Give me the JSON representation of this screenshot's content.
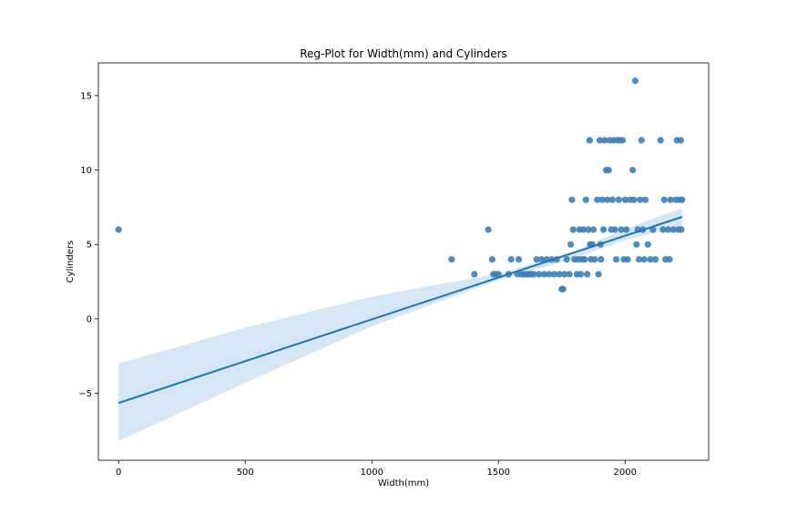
{
  "chart_data": {
    "type": "scatter",
    "title": "Reg-Plot for Width(mm) and Cylinders",
    "xlabel": "Width(mm)",
    "ylabel": "Cylinders",
    "xlim": [
      -80,
      2330
    ],
    "ylim": [
      -9.5,
      17.2
    ],
    "xticks": [
      0,
      500,
      1000,
      1500,
      2000
    ],
    "yticks": [
      -5,
      0,
      5,
      10,
      15
    ],
    "grid": false,
    "colors": {
      "points": "#3f7fb5",
      "line": "#1f77b4",
      "band": "#c6dbef"
    },
    "points": [
      [
        0,
        6
      ],
      [
        1315,
        4
      ],
      [
        1405,
        3
      ],
      [
        1460,
        6
      ],
      [
        1475,
        4
      ],
      [
        1480,
        3
      ],
      [
        1490,
        3
      ],
      [
        1500,
        3
      ],
      [
        1540,
        3
      ],
      [
        1550,
        4
      ],
      [
        1575,
        3
      ],
      [
        1580,
        4
      ],
      [
        1590,
        3
      ],
      [
        1600,
        3
      ],
      [
        1610,
        3
      ],
      [
        1620,
        3
      ],
      [
        1630,
        3
      ],
      [
        1640,
        3
      ],
      [
        1650,
        4
      ],
      [
        1660,
        3
      ],
      [
        1670,
        4
      ],
      [
        1680,
        3
      ],
      [
        1690,
        4
      ],
      [
        1700,
        3
      ],
      [
        1710,
        4
      ],
      [
        1720,
        3
      ],
      [
        1730,
        4
      ],
      [
        1740,
        3
      ],
      [
        1750,
        2
      ],
      [
        1755,
        2
      ],
      [
        1760,
        3
      ],
      [
        1770,
        4
      ],
      [
        1780,
        3
      ],
      [
        1785,
        5
      ],
      [
        1790,
        8
      ],
      [
        1795,
        6
      ],
      [
        1800,
        4
      ],
      [
        1810,
        3
      ],
      [
        1815,
        4
      ],
      [
        1820,
        6
      ],
      [
        1825,
        3
      ],
      [
        1830,
        4
      ],
      [
        1835,
        6
      ],
      [
        1840,
        4
      ],
      [
        1845,
        8
      ],
      [
        1850,
        3
      ],
      [
        1855,
        6
      ],
      [
        1860,
        12
      ],
      [
        1862,
        5
      ],
      [
        1865,
        4
      ],
      [
        1870,
        5
      ],
      [
        1875,
        6
      ],
      [
        1880,
        4
      ],
      [
        1890,
        8
      ],
      [
        1895,
        3
      ],
      [
        1900,
        12
      ],
      [
        1903,
        5
      ],
      [
        1905,
        4
      ],
      [
        1910,
        8
      ],
      [
        1915,
        6
      ],
      [
        1920,
        12
      ],
      [
        1925,
        10
      ],
      [
        1930,
        8
      ],
      [
        1935,
        10
      ],
      [
        1940,
        12
      ],
      [
        1945,
        6
      ],
      [
        1950,
        8
      ],
      [
        1955,
        12
      ],
      [
        1960,
        6
      ],
      [
        1965,
        4
      ],
      [
        1970,
        12
      ],
      [
        1975,
        8
      ],
      [
        1980,
        12
      ],
      [
        1985,
        6
      ],
      [
        1990,
        12
      ],
      [
        1995,
        4
      ],
      [
        2000,
        8
      ],
      [
        2005,
        6
      ],
      [
        2010,
        4
      ],
      [
        2020,
        8
      ],
      [
        2030,
        10
      ],
      [
        2035,
        8
      ],
      [
        2040,
        16
      ],
      [
        2045,
        5
      ],
      [
        2050,
        6
      ],
      [
        2055,
        4
      ],
      [
        2060,
        8
      ],
      [
        2065,
        12
      ],
      [
        2070,
        6
      ],
      [
        2075,
        4
      ],
      [
        2080,
        8
      ],
      [
        2090,
        5
      ],
      [
        2100,
        4
      ],
      [
        2110,
        6
      ],
      [
        2120,
        4
      ],
      [
        2140,
        12
      ],
      [
        2150,
        6
      ],
      [
        2155,
        8
      ],
      [
        2160,
        4
      ],
      [
        2170,
        6
      ],
      [
        2175,
        4
      ],
      [
        2180,
        8
      ],
      [
        2190,
        6
      ],
      [
        2200,
        8
      ],
      [
        2205,
        12
      ],
      [
        2210,
        6
      ],
      [
        2215,
        8
      ],
      [
        2220,
        12
      ],
      [
        2222,
        6
      ],
      [
        2225,
        8
      ]
    ],
    "regression": {
      "x_start": 0,
      "x_end": 2225,
      "y_start": -5.65,
      "y_end": 6.85,
      "ci_band": [
        [
          0,
          -3.0,
          -8.2
        ],
        [
          500,
          -0.6,
          -4.3
        ],
        [
          1000,
          1.5,
          -0.5
        ],
        [
          1500,
          3.05,
          2.6
        ],
        [
          1800,
          4.55,
          4.05
        ],
        [
          2000,
          6.05,
          5.3
        ],
        [
          2225,
          7.45,
          6.2
        ]
      ]
    }
  }
}
